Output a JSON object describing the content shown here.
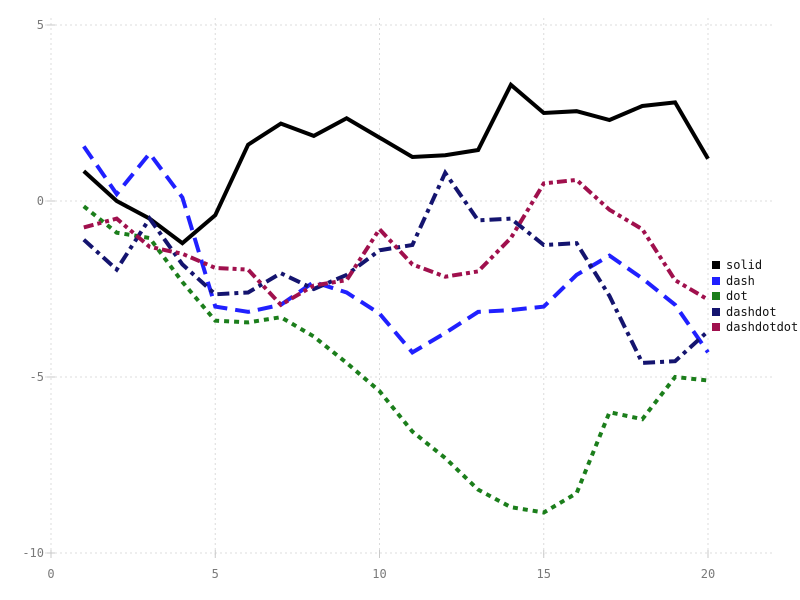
{
  "chart_data": {
    "type": "line",
    "title": "",
    "xlabel": "",
    "ylabel": "",
    "grid": true,
    "legend_position": "right-outside",
    "xlim": [
      0,
      20
    ],
    "ylim": [
      -10,
      5
    ],
    "x_ticks": [
      0,
      5,
      10,
      15,
      20
    ],
    "y_ticks": [
      -10,
      -5,
      0,
      5
    ],
    "x": [
      1,
      2,
      3,
      4,
      5,
      6,
      7,
      8,
      9,
      10,
      11,
      12,
      13,
      14,
      15,
      16,
      17,
      18,
      19,
      20
    ],
    "series": [
      {
        "name": "solid",
        "line_style": "solid",
        "color": "#000000",
        "values": [
          0.85,
          0.0,
          -0.5,
          -1.2,
          -0.4,
          1.6,
          2.2,
          1.85,
          2.35,
          1.8,
          1.25,
          1.3,
          1.45,
          3.3,
          2.5,
          2.55,
          2.3,
          2.7,
          2.8,
          1.2
        ]
      },
      {
        "name": "dash",
        "line_style": "dash",
        "color": "#2020ff",
        "values": [
          1.55,
          0.2,
          1.35,
          0.1,
          -3.0,
          -3.15,
          -2.95,
          -2.3,
          -2.6,
          -3.2,
          -4.3,
          -3.75,
          -3.15,
          -3.1,
          -3.0,
          -2.1,
          -1.55,
          -2.2,
          -2.95,
          -4.3
        ]
      },
      {
        "name": "dot",
        "line_style": "dot",
        "color": "#1b7e1b",
        "values": [
          -0.15,
          -0.9,
          -1.05,
          -2.3,
          -3.4,
          -3.45,
          -3.3,
          -3.85,
          -4.6,
          -5.4,
          -6.55,
          -7.3,
          -8.2,
          -8.7,
          -8.85,
          -8.3,
          -6.0,
          -6.2,
          -5.0,
          -5.1
        ]
      },
      {
        "name": "dashdot",
        "line_style": "dashdot",
        "color": "#14146f",
        "values": [
          -1.1,
          -1.95,
          -0.5,
          -1.8,
          -2.65,
          -2.6,
          -2.05,
          -2.5,
          -2.1,
          -1.4,
          -1.25,
          0.8,
          -0.55,
          -0.5,
          -1.25,
          -1.2,
          -2.7,
          -4.6,
          -4.55,
          -3.7
        ]
      },
      {
        "name": "dashdotdot",
        "line_style": "dashdotdot",
        "color": "#a0104d",
        "values": [
          -0.75,
          -0.5,
          -1.3,
          -1.5,
          -1.9,
          -1.95,
          -2.95,
          -2.4,
          -2.25,
          -0.8,
          -1.8,
          -2.15,
          -2.0,
          -1.05,
          0.5,
          0.6,
          -0.25,
          -0.8,
          -2.25,
          -2.8
        ]
      }
    ],
    "legend": [
      "solid",
      "dash",
      "dot",
      "dashdot",
      "dashdotdot"
    ],
    "colors": {
      "background": "#ffffff",
      "gridline": "#dcdcdc",
      "tick_mark": "#c9c9c9",
      "tick_label": "#7a7a7a",
      "legend_text": "#111111"
    }
  }
}
